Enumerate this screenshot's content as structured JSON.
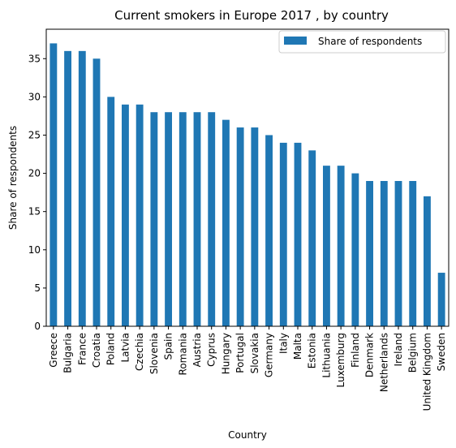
{
  "chart_data": {
    "type": "bar",
    "title": "Current smokers in Europe 2017 , by country",
    "xlabel": "Country",
    "ylabel": "Share of respondents",
    "categories": [
      "Greece",
      "Bulgaria",
      "France",
      "Croatia",
      "Poland",
      "Latvia",
      "Czechia",
      "Slovenia",
      "Spain",
      "Romania",
      "Austria",
      "Cyprus",
      "Hungary",
      "Portugal",
      "Slovakia",
      "Germany",
      "Italy",
      "Malta",
      "Estonia",
      "Lithuania",
      "Luxemburg",
      "Finland",
      "Denmark",
      "Netherlands",
      "Ireland",
      "Belgium",
      "United Kingdom",
      "Sweden"
    ],
    "series": [
      {
        "name": "Share of respondents",
        "values": [
          37,
          36,
          36,
          35,
          30,
          29,
          29,
          28,
          28,
          28,
          28,
          28,
          27,
          26,
          26,
          25,
          24,
          24,
          23,
          21,
          21,
          20,
          19,
          19,
          19,
          19,
          17,
          7
        ]
      }
    ],
    "ylim": [
      0,
      38.85
    ],
    "yticks": [
      0,
      5,
      10,
      15,
      20,
      25,
      30,
      35
    ],
    "grid": false,
    "legend": "top-right",
    "colors": {
      "bar": "#1f77b4"
    }
  }
}
